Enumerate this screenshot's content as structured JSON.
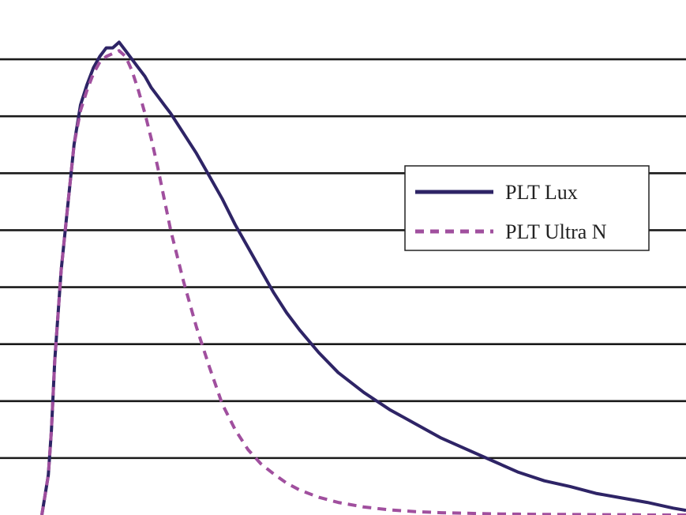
{
  "chart_data": {
    "type": "line",
    "title": "",
    "xlabel": "",
    "ylabel": "",
    "xlim": [
      0,
      100
    ],
    "ylim": [
      0,
      8.5
    ],
    "grid": true,
    "legend_placement": "right",
    "series": [
      {
        "name": "PLT Lux",
        "style": "solid",
        "color": "#2e2466",
        "x": [
          0,
          1,
          1.5,
          2,
          3,
          4,
          5,
          6,
          7,
          8,
          9,
          10,
          11,
          12,
          13,
          14,
          15,
          16,
          17,
          18,
          19,
          20,
          22,
          24,
          26,
          28,
          30,
          32,
          34,
          36,
          38,
          40,
          43,
          46,
          50,
          54,
          58,
          62,
          66,
          70,
          74,
          78,
          82,
          86,
          90,
          94,
          98,
          100
        ],
        "y": [
          0,
          0.7,
          1.5,
          2.7,
          4.3,
          5.4,
          6.5,
          7.2,
          7.55,
          7.85,
          8.05,
          8.2,
          8.2,
          8.3,
          8.15,
          8.0,
          7.85,
          7.7,
          7.5,
          7.35,
          7.2,
          7.05,
          6.7,
          6.35,
          5.95,
          5.55,
          5.1,
          4.7,
          4.3,
          3.9,
          3.55,
          3.25,
          2.85,
          2.5,
          2.15,
          1.85,
          1.6,
          1.35,
          1.15,
          0.95,
          0.75,
          0.6,
          0.5,
          0.38,
          0.3,
          0.22,
          0.12,
          0.08
        ]
      },
      {
        "name": "PLT Ultra N",
        "style": "dashed",
        "color": "#a04f9e",
        "x": [
          0,
          1,
          1.5,
          2,
          3,
          4,
          5,
          6,
          7,
          8,
          9,
          10,
          11,
          12,
          13,
          14,
          15,
          16,
          17,
          18,
          19,
          20,
          22,
          24,
          26,
          28,
          30,
          32,
          34,
          36,
          38,
          40,
          43,
          46,
          50,
          54,
          58,
          62,
          66,
          70,
          74,
          78,
          82,
          86,
          90,
          94,
          98,
          100
        ],
        "y": [
          0,
          0.7,
          1.5,
          2.7,
          4.3,
          5.4,
          6.5,
          7.1,
          7.45,
          7.75,
          7.95,
          8.05,
          8.1,
          8.15,
          8.05,
          7.8,
          7.45,
          7.05,
          6.6,
          6.1,
          5.55,
          5.0,
          4.1,
          3.3,
          2.6,
          1.95,
          1.5,
          1.15,
          0.9,
          0.72,
          0.56,
          0.44,
          0.31,
          0.22,
          0.14,
          0.09,
          0.06,
          0.04,
          0.03,
          0.02,
          0.015,
          0.01,
          0.01,
          0.005,
          0.005,
          0,
          0,
          0
        ]
      }
    ]
  }
}
